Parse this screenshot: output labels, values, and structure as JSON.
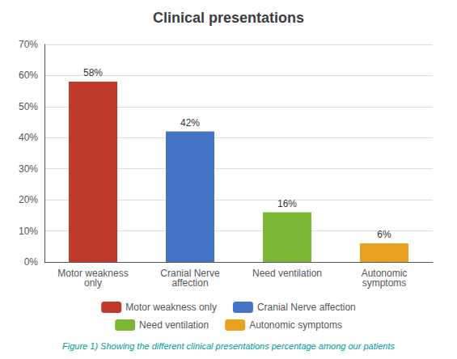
{
  "chart_data": {
    "type": "bar",
    "title": "Clinical presentations",
    "caption": "Figure 1) Showing the different clinical presentations percentage among our patients",
    "categories": [
      "Motor weakness\nonly",
      "Cranial Nerve\naffection",
      "Need ventilation",
      "Autonomic\nsymptoms"
    ],
    "series": [
      {
        "name": "Motor weakness only",
        "color": "#c0392b",
        "values": [
          58,
          null,
          null,
          null
        ],
        "value_labels": [
          "58%",
          null,
          null,
          null
        ]
      },
      {
        "name": "Cranial Nerve affection",
        "color": "#4472c4",
        "values": [
          null,
          42,
          null,
          null
        ],
        "value_labels": [
          null,
          "42%",
          null,
          null
        ]
      },
      {
        "name": "Need ventilation",
        "color": "#7cb733",
        "values": [
          null,
          null,
          16,
          null
        ],
        "value_labels": [
          null,
          null,
          "16%",
          null
        ]
      },
      {
        "name": "Autonomic symptoms",
        "color": "#e8a020",
        "values": [
          null,
          null,
          null,
          6
        ],
        "value_labels": [
          null,
          null,
          null,
          "6%"
        ]
      }
    ],
    "data_labels": true,
    "ylim": [
      0,
      70
    ],
    "yticks": [
      {
        "value": 0,
        "label": "0%"
      },
      {
        "value": 10,
        "label": "10%"
      },
      {
        "value": 20,
        "label": "20%"
      },
      {
        "value": 30,
        "label": "30%"
      },
      {
        "value": 40,
        "label": "40%"
      },
      {
        "value": 50,
        "label": "50%"
      },
      {
        "value": 60,
        "label": "60%"
      },
      {
        "value": 70,
        "label": "70%"
      }
    ],
    "grid": true,
    "legend": "bottom"
  }
}
